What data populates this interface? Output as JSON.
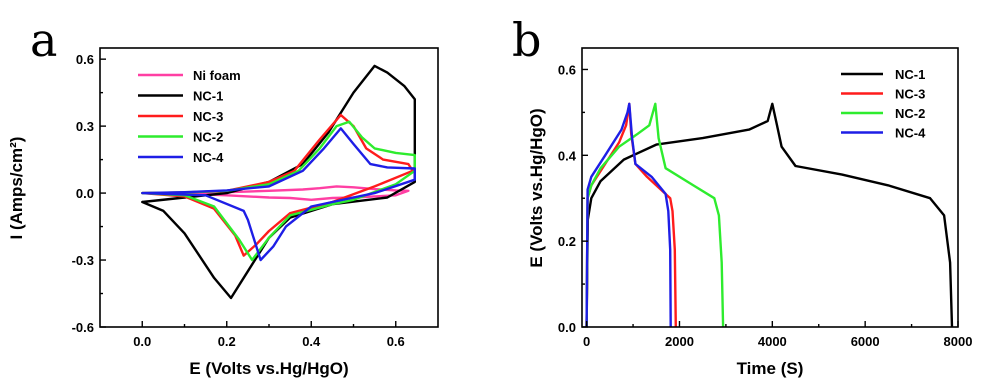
{
  "chart_data": [
    {
      "panel": "a",
      "type": "line",
      "xlabel": "E (Volts vs.Hg/HgO)",
      "ylabel": "I (Amps/cm²)",
      "xlim": [
        -0.1,
        0.7
      ],
      "ylim": [
        -0.6,
        0.65
      ],
      "xticks": [
        "0.0",
        "0.2",
        "0.4",
        "0.6"
      ],
      "yticks": [
        "-0.6",
        "-0.3",
        "0.0",
        "0.3",
        "0.6"
      ],
      "legend_position": "top-left",
      "series": [
        {
          "name": "Ni foam",
          "color": "#ff3fa3",
          "points": [
            [
              0,
              0
            ],
            [
              0.1,
              0.001
            ],
            [
              0.2,
              0.004
            ],
            [
              0.3,
              0.01
            ],
            [
              0.38,
              0.016
            ],
            [
              0.42,
              0.022
            ],
            [
              0.46,
              0.03
            ],
            [
              0.5,
              0.026
            ],
            [
              0.55,
              0.018
            ],
            [
              0.6,
              0.012
            ],
            [
              0.63,
              0.01
            ],
            [
              0.6,
              -0.01
            ],
            [
              0.5,
              -0.02
            ],
            [
              0.45,
              -0.022
            ],
            [
              0.4,
              -0.03
            ],
            [
              0.35,
              -0.022
            ],
            [
              0.3,
              -0.02
            ],
            [
              0.2,
              -0.01
            ],
            [
              0.1,
              -0.003
            ],
            [
              0,
              0
            ]
          ]
        },
        {
          "name": "NC-1",
          "color": "#000000",
          "points": [
            [
              0,
              -0.04
            ],
            [
              0.1,
              -0.02
            ],
            [
              0.2,
              0.0
            ],
            [
              0.3,
              0.05
            ],
            [
              0.38,
              0.13
            ],
            [
              0.44,
              0.27
            ],
            [
              0.5,
              0.45
            ],
            [
              0.55,
              0.57
            ],
            [
              0.58,
              0.54
            ],
            [
              0.62,
              0.48
            ],
            [
              0.645,
              0.42
            ],
            [
              0.645,
              0.05
            ],
            [
              0.58,
              -0.02
            ],
            [
              0.45,
              -0.05
            ],
            [
              0.35,
              -0.11
            ],
            [
              0.3,
              -0.2
            ],
            [
              0.25,
              -0.35
            ],
            [
              0.21,
              -0.47
            ],
            [
              0.17,
              -0.38
            ],
            [
              0.1,
              -0.18
            ],
            [
              0.05,
              -0.08
            ],
            [
              0,
              -0.04
            ]
          ]
        },
        {
          "name": "NC-3",
          "color": "#ff1c1c",
          "points": [
            [
              0,
              0
            ],
            [
              0.1,
              0.003
            ],
            [
              0.2,
              0.01
            ],
            [
              0.3,
              0.05
            ],
            [
              0.36,
              0.1
            ],
            [
              0.42,
              0.24
            ],
            [
              0.47,
              0.35
            ],
            [
              0.5,
              0.3
            ],
            [
              0.53,
              0.2
            ],
            [
              0.57,
              0.15
            ],
            [
              0.63,
              0.13
            ],
            [
              0.64,
              0.1
            ],
            [
              0.55,
              0.03
            ],
            [
              0.45,
              -0.04
            ],
            [
              0.35,
              -0.09
            ],
            [
              0.3,
              -0.17
            ],
            [
              0.27,
              -0.23
            ],
            [
              0.24,
              -0.28
            ],
            [
              0.22,
              -0.19
            ],
            [
              0.17,
              -0.07
            ],
            [
              0.1,
              -0.015
            ],
            [
              0,
              0
            ]
          ]
        },
        {
          "name": "NC-2",
          "color": "#2eec2e",
          "points": [
            [
              0,
              0
            ],
            [
              0.1,
              0.003
            ],
            [
              0.2,
              0.01
            ],
            [
              0.3,
              0.04
            ],
            [
              0.37,
              0.1
            ],
            [
              0.42,
              0.2
            ],
            [
              0.46,
              0.3
            ],
            [
              0.49,
              0.32
            ],
            [
              0.52,
              0.25
            ],
            [
              0.55,
              0.2
            ],
            [
              0.6,
              0.18
            ],
            [
              0.645,
              0.17
            ],
            [
              0.645,
              0.1
            ],
            [
              0.6,
              0.04
            ],
            [
              0.5,
              -0.03
            ],
            [
              0.45,
              -0.05
            ],
            [
              0.35,
              -0.1
            ],
            [
              0.3,
              -0.2
            ],
            [
              0.26,
              -0.3
            ],
            [
              0.23,
              -0.21
            ],
            [
              0.17,
              -0.06
            ],
            [
              0.1,
              -0.01
            ],
            [
              0,
              0
            ]
          ]
        },
        {
          "name": "NC-4",
          "color": "#1e1ee6",
          "points": [
            [
              0,
              0
            ],
            [
              0.1,
              0.004
            ],
            [
              0.2,
              0.012
            ],
            [
              0.3,
              0.03
            ],
            [
              0.38,
              0.1
            ],
            [
              0.43,
              0.2
            ],
            [
              0.47,
              0.29
            ],
            [
              0.5,
              0.22
            ],
            [
              0.54,
              0.13
            ],
            [
              0.58,
              0.115
            ],
            [
              0.645,
              0.11
            ],
            [
              0.645,
              0.06
            ],
            [
              0.55,
              0.0
            ],
            [
              0.45,
              -0.04
            ],
            [
              0.4,
              -0.06
            ],
            [
              0.34,
              -0.15
            ],
            [
              0.31,
              -0.24
            ],
            [
              0.28,
              -0.3
            ],
            [
              0.25,
              -0.12
            ],
            [
              0.24,
              -0.08
            ],
            [
              0.15,
              -0.01
            ],
            [
              0,
              0
            ]
          ]
        }
      ]
    },
    {
      "panel": "b",
      "type": "line",
      "xlabel": "Time (S)",
      "ylabel": "E (Volts vs.Hg/HgO)",
      "xlim": [
        -100,
        8000
      ],
      "ylim": [
        0,
        0.65
      ],
      "xticks": [
        "0",
        "2000",
        "4000",
        "6000",
        "8000"
      ],
      "yticks": [
        "0.0",
        "0.2",
        "0.4",
        "0.6"
      ],
      "legend_position": "top-right",
      "series": [
        {
          "name": "NC-1",
          "color": "#000000",
          "points": [
            [
              0,
              0
            ],
            [
              25,
              0.25
            ],
            [
              100,
              0.3
            ],
            [
              300,
              0.34
            ],
            [
              800,
              0.39
            ],
            [
              1500,
              0.425
            ],
            [
              2500,
              0.44
            ],
            [
              3500,
              0.46
            ],
            [
              3900,
              0.48
            ],
            [
              4000,
              0.52
            ],
            [
              4100,
              0.47
            ],
            [
              4200,
              0.42
            ],
            [
              4500,
              0.375
            ],
            [
              5500,
              0.355
            ],
            [
              6500,
              0.33
            ],
            [
              7400,
              0.3
            ],
            [
              7700,
              0.26
            ],
            [
              7830,
              0.15
            ],
            [
              7870,
              0.0
            ]
          ]
        },
        {
          "name": "NC-3",
          "color": "#ff1c1c",
          "points": [
            [
              0,
              0
            ],
            [
              20,
              0.3
            ],
            [
              100,
              0.33
            ],
            [
              400,
              0.38
            ],
            [
              700,
              0.43
            ],
            [
              850,
              0.47
            ],
            [
              920,
              0.52
            ],
            [
              960,
              0.45
            ],
            [
              1050,
              0.38
            ],
            [
              1300,
              0.35
            ],
            [
              1600,
              0.32
            ],
            [
              1800,
              0.3
            ],
            [
              1850,
              0.27
            ],
            [
              1900,
              0.18
            ],
            [
              1920,
              0.0
            ]
          ]
        },
        {
          "name": "NC-2",
          "color": "#2eec2e",
          "points": [
            [
              0,
              0
            ],
            [
              20,
              0.3
            ],
            [
              100,
              0.33
            ],
            [
              300,
              0.37
            ],
            [
              700,
              0.42
            ],
            [
              1100,
              0.45
            ],
            [
              1350,
              0.47
            ],
            [
              1480,
              0.52
            ],
            [
              1550,
              0.44
            ],
            [
              1700,
              0.37
            ],
            [
              2300,
              0.33
            ],
            [
              2750,
              0.3
            ],
            [
              2850,
              0.26
            ],
            [
              2910,
              0.15
            ],
            [
              2940,
              0.0
            ]
          ]
        },
        {
          "name": "NC-4",
          "color": "#1e1ee6",
          "points": [
            [
              0,
              0
            ],
            [
              20,
              0.32
            ],
            [
              100,
              0.35
            ],
            [
              400,
              0.4
            ],
            [
              750,
              0.46
            ],
            [
              880,
              0.5
            ],
            [
              920,
              0.52
            ],
            [
              980,
              0.44
            ],
            [
              1050,
              0.38
            ],
            [
              1400,
              0.35
            ],
            [
              1700,
              0.31
            ],
            [
              1760,
              0.27
            ],
            [
              1800,
              0.18
            ],
            [
              1810,
              0.0
            ]
          ]
        }
      ]
    }
  ]
}
